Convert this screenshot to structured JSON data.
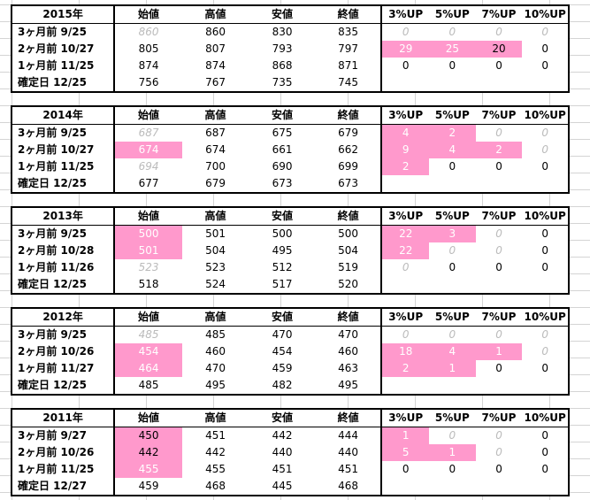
{
  "colors": {
    "highlight": "#ff99cc",
    "muted": "#bbbbbb"
  },
  "headers": [
    "始値",
    "高値",
    "安値",
    "終値",
    "3%UP",
    "5%UP",
    "7%UP",
    "10%UP"
  ],
  "blocks": [
    {
      "year": "2015年",
      "rows": [
        {
          "label": "3ヶ月前  9/25",
          "cells": [
            {
              "v": "860",
              "s": "gray"
            },
            {
              "v": "860",
              "s": ""
            },
            {
              "v": "830",
              "s": ""
            },
            {
              "v": "835",
              "s": ""
            },
            {
              "v": "0",
              "s": "gray"
            },
            {
              "v": "0",
              "s": "gray"
            },
            {
              "v": "0",
              "s": "gray"
            },
            {
              "v": "0",
              "s": "gray"
            }
          ]
        },
        {
          "label": "2ヶ月前  10/27",
          "cells": [
            {
              "v": "805",
              "s": ""
            },
            {
              "v": "807",
              "s": ""
            },
            {
              "v": "793",
              "s": ""
            },
            {
              "v": "797",
              "s": ""
            },
            {
              "v": "29",
              "s": "pink"
            },
            {
              "v": "25",
              "s": "pink"
            },
            {
              "v": "20",
              "s": "pink-dark"
            },
            {
              "v": "0",
              "s": ""
            }
          ]
        },
        {
          "label": "1ヶ月前  11/25",
          "cells": [
            {
              "v": "874",
              "s": ""
            },
            {
              "v": "874",
              "s": ""
            },
            {
              "v": "868",
              "s": ""
            },
            {
              "v": "871",
              "s": ""
            },
            {
              "v": "0",
              "s": ""
            },
            {
              "v": "0",
              "s": ""
            },
            {
              "v": "0",
              "s": ""
            },
            {
              "v": "0",
              "s": ""
            }
          ]
        },
        {
          "label": "確定日  12/25",
          "cells": [
            {
              "v": "756",
              "s": ""
            },
            {
              "v": "767",
              "s": ""
            },
            {
              "v": "735",
              "s": ""
            },
            {
              "v": "745",
              "s": ""
            },
            {
              "v": "",
              "s": ""
            },
            {
              "v": "",
              "s": ""
            },
            {
              "v": "",
              "s": ""
            },
            {
              "v": "",
              "s": ""
            }
          ]
        }
      ]
    },
    {
      "year": "2014年",
      "rows": [
        {
          "label": "3ヶ月前  9/25",
          "cells": [
            {
              "v": "687",
              "s": "gray"
            },
            {
              "v": "687",
              "s": ""
            },
            {
              "v": "675",
              "s": ""
            },
            {
              "v": "679",
              "s": ""
            },
            {
              "v": "4",
              "s": "pink"
            },
            {
              "v": "2",
              "s": "pink"
            },
            {
              "v": "0",
              "s": "gray"
            },
            {
              "v": "0",
              "s": "gray"
            }
          ]
        },
        {
          "label": "2ヶ月前  10/27",
          "cells": [
            {
              "v": "674",
              "s": "pink"
            },
            {
              "v": "674",
              "s": ""
            },
            {
              "v": "661",
              "s": ""
            },
            {
              "v": "662",
              "s": ""
            },
            {
              "v": "9",
              "s": "pink"
            },
            {
              "v": "4",
              "s": "pink"
            },
            {
              "v": "2",
              "s": "pink"
            },
            {
              "v": "0",
              "s": "gray"
            }
          ]
        },
        {
          "label": "1ヶ月前  11/25",
          "cells": [
            {
              "v": "694",
              "s": "gray"
            },
            {
              "v": "700",
              "s": ""
            },
            {
              "v": "690",
              "s": ""
            },
            {
              "v": "699",
              "s": ""
            },
            {
              "v": "2",
              "s": "pink"
            },
            {
              "v": "0",
              "s": ""
            },
            {
              "v": "0",
              "s": ""
            },
            {
              "v": "0",
              "s": ""
            }
          ]
        },
        {
          "label": "確定日  12/25",
          "cells": [
            {
              "v": "677",
              "s": ""
            },
            {
              "v": "679",
              "s": ""
            },
            {
              "v": "673",
              "s": ""
            },
            {
              "v": "673",
              "s": ""
            },
            {
              "v": "",
              "s": ""
            },
            {
              "v": "",
              "s": ""
            },
            {
              "v": "",
              "s": ""
            },
            {
              "v": "",
              "s": ""
            }
          ]
        }
      ]
    },
    {
      "year": "2013年",
      "rows": [
        {
          "label": "3ヶ月前  9/25",
          "cells": [
            {
              "v": "500",
              "s": "pink"
            },
            {
              "v": "501",
              "s": ""
            },
            {
              "v": "500",
              "s": ""
            },
            {
              "v": "500",
              "s": ""
            },
            {
              "v": "22",
              "s": "pink"
            },
            {
              "v": "3",
              "s": "pink"
            },
            {
              "v": "0",
              "s": "gray"
            },
            {
              "v": "0",
              "s": ""
            }
          ]
        },
        {
          "label": "2ヶ月前  10/28",
          "cells": [
            {
              "v": "501",
              "s": "pink"
            },
            {
              "v": "504",
              "s": ""
            },
            {
              "v": "495",
              "s": ""
            },
            {
              "v": "504",
              "s": ""
            },
            {
              "v": "22",
              "s": "pink"
            },
            {
              "v": "0",
              "s": "gray"
            },
            {
              "v": "0",
              "s": "gray"
            },
            {
              "v": "0",
              "s": ""
            }
          ]
        },
        {
          "label": "1ヶ月前  11/26",
          "cells": [
            {
              "v": "523",
              "s": "gray"
            },
            {
              "v": "523",
              "s": ""
            },
            {
              "v": "512",
              "s": ""
            },
            {
              "v": "519",
              "s": ""
            },
            {
              "v": "0",
              "s": "gray"
            },
            {
              "v": "0",
              "s": ""
            },
            {
              "v": "0",
              "s": ""
            },
            {
              "v": "0",
              "s": ""
            }
          ]
        },
        {
          "label": "確定日  12/25",
          "cells": [
            {
              "v": "518",
              "s": ""
            },
            {
              "v": "524",
              "s": ""
            },
            {
              "v": "517",
              "s": ""
            },
            {
              "v": "520",
              "s": ""
            },
            {
              "v": "",
              "s": ""
            },
            {
              "v": "",
              "s": ""
            },
            {
              "v": "",
              "s": ""
            },
            {
              "v": "",
              "s": ""
            }
          ]
        }
      ]
    },
    {
      "year": "2012年",
      "rows": [
        {
          "label": "3ヶ月前  9/25",
          "cells": [
            {
              "v": "485",
              "s": "gray"
            },
            {
              "v": "485",
              "s": ""
            },
            {
              "v": "470",
              "s": ""
            },
            {
              "v": "470",
              "s": ""
            },
            {
              "v": "0",
              "s": "gray"
            },
            {
              "v": "0",
              "s": "gray"
            },
            {
              "v": "0",
              "s": "gray"
            },
            {
              "v": "0",
              "s": "gray"
            }
          ]
        },
        {
          "label": "2ヶ月前  10/26",
          "cells": [
            {
              "v": "454",
              "s": "pink"
            },
            {
              "v": "460",
              "s": ""
            },
            {
              "v": "454",
              "s": ""
            },
            {
              "v": "460",
              "s": ""
            },
            {
              "v": "18",
              "s": "pink"
            },
            {
              "v": "4",
              "s": "pink"
            },
            {
              "v": "1",
              "s": "pink"
            },
            {
              "v": "0",
              "s": "gray"
            }
          ]
        },
        {
          "label": "1ヶ月前  11/27",
          "cells": [
            {
              "v": "464",
              "s": "pink"
            },
            {
              "v": "470",
              "s": ""
            },
            {
              "v": "459",
              "s": ""
            },
            {
              "v": "463",
              "s": ""
            },
            {
              "v": "2",
              "s": "pink"
            },
            {
              "v": "1",
              "s": "pink"
            },
            {
              "v": "0",
              "s": ""
            },
            {
              "v": "0",
              "s": ""
            }
          ]
        },
        {
          "label": "確定日  12/25",
          "cells": [
            {
              "v": "485",
              "s": ""
            },
            {
              "v": "495",
              "s": ""
            },
            {
              "v": "482",
              "s": ""
            },
            {
              "v": "495",
              "s": ""
            },
            {
              "v": "",
              "s": ""
            },
            {
              "v": "",
              "s": ""
            },
            {
              "v": "",
              "s": ""
            },
            {
              "v": "",
              "s": ""
            }
          ]
        }
      ]
    },
    {
      "year": "2011年",
      "rows": [
        {
          "label": "3ヶ月前  9/27",
          "cells": [
            {
              "v": "450",
              "s": "pink-dark"
            },
            {
              "v": "451",
              "s": ""
            },
            {
              "v": "442",
              "s": ""
            },
            {
              "v": "444",
              "s": ""
            },
            {
              "v": "1",
              "s": "pink"
            },
            {
              "v": "0",
              "s": "gray"
            },
            {
              "v": "0",
              "s": "gray"
            },
            {
              "v": "0",
              "s": ""
            }
          ]
        },
        {
          "label": "2ヶ月前  10/26",
          "cells": [
            {
              "v": "442",
              "s": "pink-dark"
            },
            {
              "v": "442",
              "s": ""
            },
            {
              "v": "440",
              "s": ""
            },
            {
              "v": "440",
              "s": ""
            },
            {
              "v": "5",
              "s": "pink"
            },
            {
              "v": "1",
              "s": "pink"
            },
            {
              "v": "0",
              "s": "gray"
            },
            {
              "v": "0",
              "s": ""
            }
          ]
        },
        {
          "label": "1ヶ月前  11/25",
          "cells": [
            {
              "v": "455",
              "s": "pink"
            },
            {
              "v": "455",
              "s": ""
            },
            {
              "v": "451",
              "s": ""
            },
            {
              "v": "451",
              "s": ""
            },
            {
              "v": "0",
              "s": ""
            },
            {
              "v": "0",
              "s": ""
            },
            {
              "v": "0",
              "s": ""
            },
            {
              "v": "0",
              "s": ""
            }
          ]
        },
        {
          "label": "確定日  12/27",
          "cells": [
            {
              "v": "459",
              "s": ""
            },
            {
              "v": "468",
              "s": ""
            },
            {
              "v": "445",
              "s": ""
            },
            {
              "v": "468",
              "s": ""
            },
            {
              "v": "",
              "s": ""
            },
            {
              "v": "",
              "s": ""
            },
            {
              "v": "",
              "s": ""
            },
            {
              "v": "",
              "s": ""
            }
          ]
        }
      ]
    }
  ]
}
